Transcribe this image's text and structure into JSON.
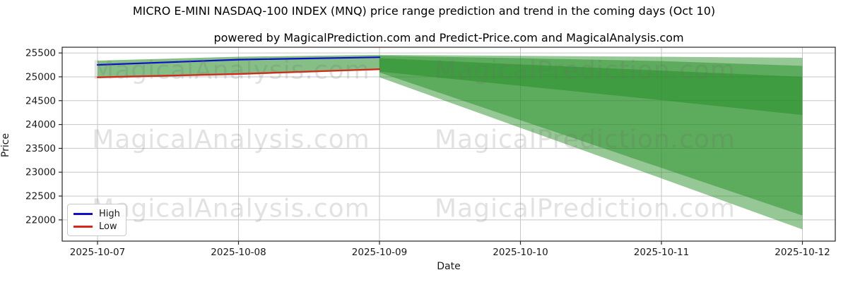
{
  "figure": {
    "title": "MICRO E-MINI NASDAQ-100 INDEX (MNQ) price range prediction and trend in the coming days (Oct 10)",
    "subtitle": "powered by MagicalPrediction.com and Predict-Price.com and MagicalAnalysis.com"
  },
  "watermarks": {
    "left_text": "MagicalAnalysis.com",
    "right_text": "MagicalPrediction.com"
  },
  "legend": {
    "items": [
      {
        "label": "High",
        "color": "#0f0fc8"
      },
      {
        "label": "Low",
        "color": "#dc2418"
      }
    ]
  },
  "colors": {
    "band_green": "#228B22",
    "grid": "#c6c6c6",
    "spine": "#262626",
    "tick_text": "#1a1a1a"
  },
  "chart_data": {
    "type": "line",
    "title": "MICRO E-MINI NASDAQ-100 INDEX (MNQ) price range prediction and trend in the coming days (Oct 10)",
    "xlabel": "Date",
    "ylabel": "Price",
    "x_categories": [
      "2025-10-07",
      "2025-10-08",
      "2025-10-09",
      "2025-10-10",
      "2025-10-11",
      "2025-10-12"
    ],
    "yticks": [
      25500,
      25000,
      24500,
      24000,
      23500,
      23000,
      22500,
      22000
    ],
    "ylim": [
      21555,
      25620
    ],
    "grid": true,
    "legend_position": "lower left",
    "series": [
      {
        "name": "High",
        "color": "#0f0fc8",
        "x": [
          0,
          1,
          2
        ],
        "values": [
          25250,
          25360,
          25410
        ]
      },
      {
        "name": "Low",
        "color": "#dc2418",
        "x": [
          0,
          1,
          2
        ],
        "values": [
          24990,
          25060,
          25160
        ]
      }
    ],
    "bands": [
      {
        "name": "historical-range",
        "x": [
          0,
          1,
          2
        ],
        "top": [
          25340,
          25420,
          25460
        ],
        "bottom": [
          24970,
          25040,
          25140
        ],
        "opacity": 0.55
      },
      {
        "name": "forecast-outer",
        "x": [
          2,
          3,
          4,
          5
        ],
        "top": [
          25460,
          25440,
          25420,
          25400
        ],
        "bottom": [
          24990,
          23930,
          22870,
          21800
        ],
        "opacity": 0.48
      },
      {
        "name": "forecast-middle",
        "x": [
          2,
          3,
          4,
          5
        ],
        "top": [
          25440,
          25390,
          25330,
          25230
        ],
        "bottom": [
          25090,
          24090,
          23090,
          22090
        ],
        "opacity": 0.48
      },
      {
        "name": "forecast-inner",
        "x": [
          2,
          3,
          4,
          5
        ],
        "top": [
          25390,
          25260,
          25130,
          25000
        ],
        "bottom": [
          25110,
          24810,
          24510,
          24200
        ],
        "opacity": 0.48
      }
    ]
  }
}
